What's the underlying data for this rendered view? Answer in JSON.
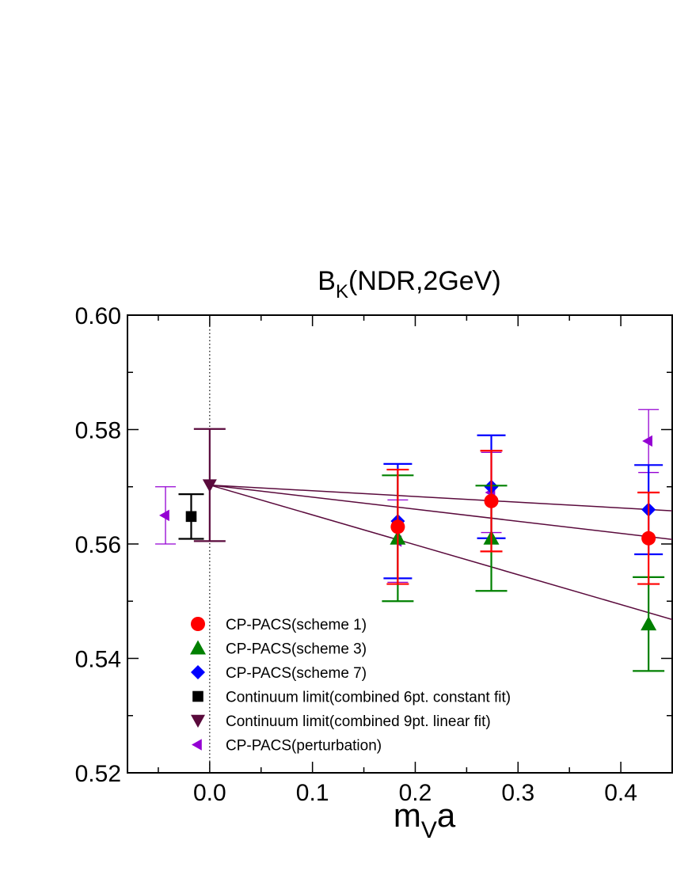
{
  "chart_data": {
    "type": "scatter",
    "title": "B",
    "title_sub": "K",
    "title_rest": "(NDR,2GeV)",
    "xlabel": "m",
    "xlabel_sub": "V",
    "xlabel_rest": "a",
    "ylabel": "",
    "xlim": [
      -0.08,
      0.45
    ],
    "ylim": [
      0.52,
      0.6
    ],
    "xticks": [
      0.0,
      0.1,
      0.2,
      0.3,
      0.4
    ],
    "xtick_labels": [
      "0.0",
      "0.1",
      "0.2",
      "0.3",
      "0.4"
    ],
    "yticks": [
      0.52,
      0.54,
      0.56,
      0.58,
      0.6
    ],
    "ytick_labels": [
      "0.52",
      "0.54",
      "0.56",
      "0.58",
      "0.60"
    ],
    "grid": false,
    "vertical_reference_line": 0.0,
    "legend_position": "bottom-left",
    "series": [
      {
        "name": "CP-PACS(scheme 1)",
        "marker": "circle",
        "color": "#ff0000",
        "points": [
          {
            "x": 0.183,
            "y": 0.563,
            "err": 0.01
          },
          {
            "x": 0.274,
            "y": 0.5675,
            "err": 0.0088
          },
          {
            "x": 0.427,
            "y": 0.561,
            "err": 0.008
          }
        ]
      },
      {
        "name": "CP-PACS(scheme 3)",
        "marker": "triangle-up",
        "color": "#008000",
        "points": [
          {
            "x": 0.183,
            "y": 0.561,
            "err": 0.011
          },
          {
            "x": 0.274,
            "y": 0.561,
            "err": 0.0092
          },
          {
            "x": 0.427,
            "y": 0.546,
            "err": 0.0082
          }
        ]
      },
      {
        "name": "CP-PACS(scheme 7)",
        "marker": "diamond",
        "color": "#0000ff",
        "points": [
          {
            "x": 0.183,
            "y": 0.564,
            "err": 0.01
          },
          {
            "x": 0.274,
            "y": 0.57,
            "err": 0.009
          },
          {
            "x": 0.427,
            "y": 0.566,
            "err": 0.0078
          }
        ]
      },
      {
        "name": "Continuum limit(combined 6pt. constant fit)",
        "marker": "square",
        "color": "#000000",
        "points": [
          {
            "x": -0.018,
            "y": 0.5648,
            "err": 0.0039
          }
        ]
      },
      {
        "name": "Continuum limit(combined 9pt. linear fit)",
        "marker": "triangle-down",
        "color": "#5a0a3c",
        "points": [
          {
            "x": 0.0,
            "y": 0.5703,
            "err": 0.0098
          }
        ]
      },
      {
        "name": "CP-PACS(perturbation)",
        "marker": "triangle-left",
        "color": "#9400d3",
        "points": [
          {
            "x": -0.043,
            "y": 0.565,
            "err": 0.005
          },
          {
            "x": 0.183,
            "y": 0.5605,
            "err": 0.0072
          },
          {
            "x": 0.274,
            "y": 0.569,
            "err": 0.007
          },
          {
            "x": 0.427,
            "y": 0.578,
            "err": 0.0055
          }
        ]
      }
    ],
    "fit_lines": [
      {
        "color": "#5a0a3c",
        "x0": 0.0,
        "y0": 0.5703,
        "x1": 0.45,
        "y1": 0.5658
      },
      {
        "color": "#5a0a3c",
        "x0": 0.0,
        "y0": 0.5703,
        "x1": 0.45,
        "y1": 0.5608
      },
      {
        "color": "#5a0a3c",
        "x0": 0.0,
        "y0": 0.5703,
        "x1": 0.45,
        "y1": 0.5468
      }
    ]
  }
}
